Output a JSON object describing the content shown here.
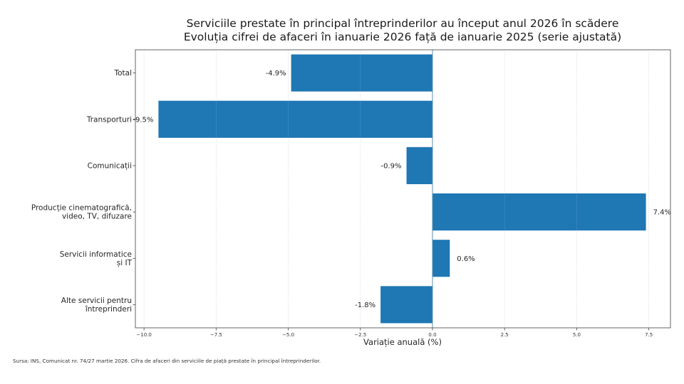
{
  "chart_data": {
    "type": "bar",
    "orientation": "horizontal",
    "title": "Serviciile prestate în principal întreprinderilor au început anul 2026 în scădere",
    "subtitle": "Evoluția cifrei de afaceri în ianuarie 2026 față de ianuarie 2025 (serie ajustată)",
    "xlabel": "Variație anuală (%)",
    "ylabel": "",
    "categories": [
      [
        "Total"
      ],
      [
        "Transporturi"
      ],
      [
        "Comunicații"
      ],
      [
        "Producție cinematografică,",
        "video, TV, difuzare"
      ],
      [
        "Servicii informatice",
        "și IT"
      ],
      [
        "Alte servicii pentru",
        "întreprinderi"
      ]
    ],
    "values": [
      -4.9,
      -9.5,
      -0.9,
      7.4,
      0.6,
      -1.8
    ],
    "data_labels": [
      "-4.9%",
      "-9.5%",
      "-0.9%",
      "7.4%",
      "0.6%",
      "-1.8%"
    ],
    "xlim": [
      -10.3,
      8.25
    ],
    "xticks": [
      -10.0,
      -7.5,
      -5.0,
      -2.5,
      0.0,
      2.5,
      5.0,
      7.5
    ],
    "xtick_labels": [
      "−10.0",
      "−7.5",
      "−5.0",
      "−2.5",
      "0.0",
      "2.5",
      "5.0",
      "7.5"
    ],
    "grid": "x",
    "zero_line": true,
    "bar_color": "#1f77b4",
    "legend": "none"
  },
  "footer": {
    "source": "Sursa: INS, Comunicat nr. 74/27 martie 2026. Cifra de afaceri din serviciile de piață prestate în principal întreprinderilor."
  }
}
